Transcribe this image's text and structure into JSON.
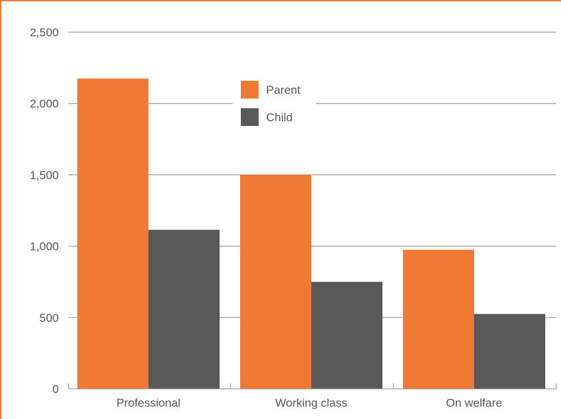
{
  "chart_data": {
    "type": "bar",
    "categories": [
      "Professional",
      "Working class",
      "On welfare"
    ],
    "series": [
      {
        "name": "Parent",
        "color": "#f07a33",
        "values": [
          2175,
          1500,
          975
        ]
      },
      {
        "name": "Child",
        "color": "#595959",
        "values": [
          1115,
          750,
          525
        ]
      }
    ],
    "ylim": [
      0,
      2500
    ],
    "yticks": [
      "0",
      "500",
      "1,000",
      "1,500",
      "2,000",
      "2,500"
    ],
    "ytick_values": [
      0,
      500,
      1000,
      1500,
      2000,
      2500
    ],
    "grid": true,
    "legend_position": "top-center",
    "title": "",
    "xlabel": "",
    "ylabel": ""
  }
}
